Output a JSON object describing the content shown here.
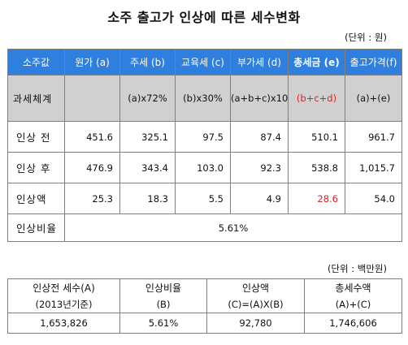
{
  "title": "소주 출고가 인상에 따른 세수변화",
  "unit_top": "(단위 : 원)",
  "unit_bottom": "(단위 : 백만원)",
  "table1": {
    "headers": [
      "소주값",
      "원가 (a)",
      "주세 (b)",
      "교육세 (c)",
      "부가세 (d)",
      "총세금 (e)",
      "출고가격(f)"
    ],
    "system_row": {
      "label": "과세체계",
      "cells": [
        "",
        "(a)x72%",
        "(b)x30%",
        "(a+b+c)x10%",
        "(b+c+d)",
        "(a)+(e)"
      ]
    },
    "rows": [
      {
        "label": "인상 전",
        "values": [
          "451.6",
          "325.1",
          "97.5",
          "87.4",
          "510.1",
          "961.7"
        ]
      },
      {
        "label": "인상 후",
        "values": [
          "476.9",
          "343.4",
          "103.0",
          "92.3",
          "538.8",
          "1,015.7"
        ]
      },
      {
        "label": "인상액",
        "values": [
          "25.3",
          "18.3",
          "5.5",
          "4.9",
          "28.6",
          "54.0"
        ]
      }
    ],
    "ratio_row": {
      "label": "인상비율",
      "value": "5.61%"
    }
  },
  "table2": {
    "headers": [
      {
        "line1": "인상전 세수(A)",
        "line2": "(2013년기준)"
      },
      {
        "line1": "인상비율",
        "line2": "(B)"
      },
      {
        "line1": "인상액",
        "line2": "(C)=(A)X(B)"
      },
      {
        "line1": "총세수액",
        "line2": "(A)+(C)"
      }
    ],
    "values": [
      "1,653,826",
      "5.61%",
      "92,780",
      "1,746,606"
    ]
  },
  "colors": {
    "header_bg": "#2f7fde",
    "system_bg": "#d0d0d0",
    "highlight_red": "#e02020"
  }
}
